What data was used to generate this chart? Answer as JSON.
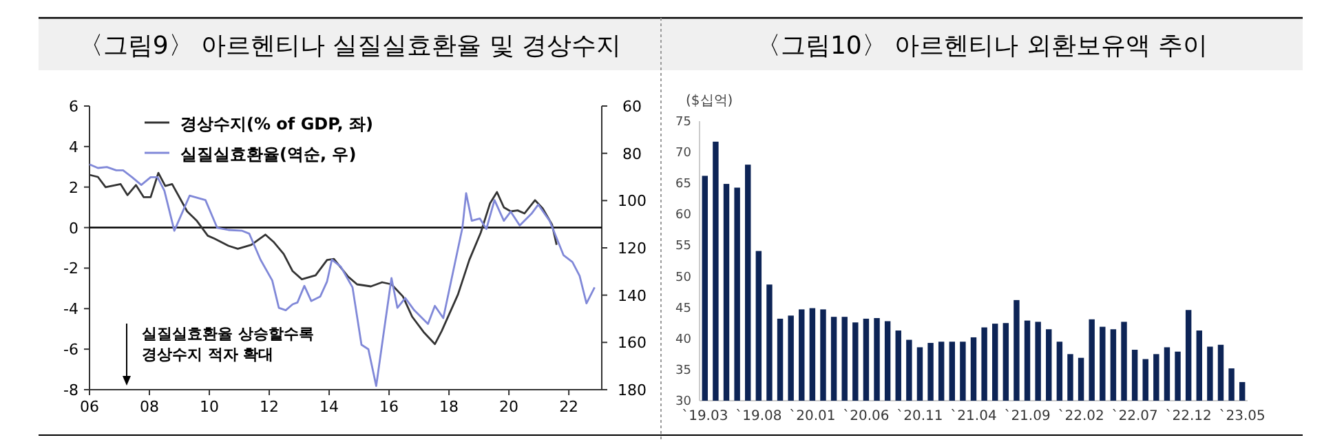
{
  "chart_data": [
    {
      "type": "line",
      "title": "〈그림9〉 아르헨티나 실질실효환율 및 경상수지",
      "xlim": [
        2006,
        2023.1
      ],
      "xticks": [
        {
          "value": 2006,
          "label": "06"
        },
        {
          "value": 2008,
          "label": "08"
        },
        {
          "value": 2010,
          "label": "10"
        },
        {
          "value": 2012,
          "label": "12"
        },
        {
          "value": 2014,
          "label": "14"
        },
        {
          "value": 2016,
          "label": "16"
        },
        {
          "value": 2018,
          "label": "18"
        },
        {
          "value": 2020,
          "label": "20"
        },
        {
          "value": 2022,
          "label": "22"
        }
      ],
      "ylim": [
        -8,
        6
      ],
      "yticks": [
        -8,
        -6,
        -4,
        -2,
        0,
        2,
        4,
        6
      ],
      "y2lim": [
        180,
        60
      ],
      "y2ticks": [
        60,
        80,
        100,
        120,
        140,
        160,
        180
      ],
      "legend": "top left",
      "grid": false,
      "ref_lines": [
        {
          "axis": "y",
          "value": 0,
          "color": "#000000"
        }
      ],
      "annotations": [
        "실질실효환율 상승할수록",
        "경상수지 적자 확대"
      ],
      "series": [
        {
          "name": "경상수지(% of GDP, 좌)",
          "color": "#333333",
          "x": [
            2006.0,
            2006.28,
            2006.54,
            2007.04,
            2007.27,
            2007.55,
            2007.81,
            2008.04,
            2008.3,
            2008.53,
            2008.76,
            2009.26,
            2009.57,
            2009.95,
            2010.18,
            2010.64,
            2010.95,
            2011.4,
            2011.87,
            2012.14,
            2012.48,
            2012.78,
            2013.09,
            2013.55,
            2013.93,
            2014.16,
            2014.62,
            2014.93,
            2015.39,
            2015.77,
            2016.08,
            2016.46,
            2016.77,
            2017.15,
            2017.53,
            2017.76,
            2018.3,
            2018.68,
            2019.06,
            2019.37,
            2019.6,
            2019.83,
            2020.06,
            2020.29,
            2020.52,
            2020.87,
            2021.13,
            2021.44,
            2021.59
          ],
          "values": [
            2.6,
            2.5,
            2.0,
            2.15,
            1.6,
            2.1,
            1.5,
            1.5,
            2.7,
            2.05,
            2.15,
            0.8,
            0.35,
            -0.4,
            -0.55,
            -0.9,
            -1.05,
            -0.85,
            -0.35,
            -0.7,
            -1.3,
            -2.15,
            -2.55,
            -2.35,
            -1.6,
            -1.55,
            -2.4,
            -2.8,
            -2.9,
            -2.7,
            -2.8,
            -3.4,
            -4.4,
            -5.15,
            -5.75,
            -5.1,
            -3.3,
            -1.6,
            -0.25,
            1.2,
            1.75,
            1.0,
            0.8,
            0.85,
            0.7,
            1.35,
            0.95,
            0.15,
            -0.85
          ]
        },
        {
          "name": "실질실효환율(역순, 우)",
          "color": "#8088d8",
          "axis": "y2",
          "x": [
            2006.0,
            2006.28,
            2006.58,
            2006.89,
            2007.12,
            2007.42,
            2007.73,
            2008.04,
            2008.27,
            2008.5,
            2008.83,
            2009.34,
            2009.87,
            2010.26,
            2010.64,
            2011.1,
            2011.33,
            2011.71,
            2012.1,
            2012.32,
            2012.55,
            2012.78,
            2012.94,
            2013.17,
            2013.4,
            2013.7,
            2013.93,
            2014.09,
            2014.39,
            2014.78,
            2015.08,
            2015.31,
            2015.57,
            2015.85,
            2016.08,
            2016.28,
            2016.54,
            2016.84,
            2017.3,
            2017.53,
            2017.81,
            2018.45,
            2018.57,
            2018.76,
            2019.03,
            2019.25,
            2019.52,
            2019.83,
            2020.06,
            2020.36,
            2020.75,
            2020.98,
            2021.36,
            2021.82,
            2022.12,
            2022.36,
            2022.59,
            2022.86
          ],
          "values": [
            84.7,
            86.2,
            85.8,
            87.2,
            87.2,
            90.1,
            93.4,
            90.1,
            90.1,
            95.9,
            112.8,
            97.9,
            99.8,
            111.5,
            112.4,
            112.8,
            114.0,
            125.0,
            133.8,
            145.4,
            146.4,
            143.9,
            143.1,
            136.1,
            142.5,
            140.6,
            134.2,
            125.0,
            128.0,
            136.7,
            161.0,
            162.9,
            178.4,
            153.2,
            132.8,
            145.4,
            141.2,
            146.4,
            152.2,
            144.5,
            149.7,
            111.5,
            96.9,
            108.5,
            107.6,
            112.0,
            99.8,
            108.5,
            104.7,
            110.5,
            105.6,
            101.7,
            108.5,
            123.1,
            126.0,
            131.8,
            143.5,
            136.7
          ]
        }
      ]
    },
    {
      "type": "bar",
      "title": "〈그림10〉 아르헨티나 외환보유액 추이",
      "ylabel": "($십억)",
      "categories": [
        "`19.03",
        null,
        null,
        null,
        null,
        "`19.08",
        null,
        null,
        null,
        null,
        "`20.01",
        null,
        null,
        null,
        null,
        "`20.06",
        null,
        null,
        null,
        null,
        "`20.11",
        null,
        null,
        null,
        null,
        "`21.04",
        null,
        null,
        null,
        null,
        "`21.09",
        null,
        null,
        null,
        null,
        "`22.02",
        null,
        null,
        null,
        null,
        "`22.07",
        null,
        null,
        null,
        null,
        "`22.12",
        null,
        null,
        null,
        null,
        "`23.05"
      ],
      "ylim": [
        30,
        75
      ],
      "yticks": [
        30,
        35,
        40,
        45,
        50,
        55,
        60,
        65,
        70,
        75
      ],
      "grid": false,
      "color": "#0d2456",
      "values": [
        66.2,
        71.7,
        64.9,
        64.3,
        68.0,
        54.1,
        48.7,
        43.2,
        43.7,
        44.7,
        44.9,
        44.7,
        43.5,
        43.5,
        42.6,
        43.2,
        43.3,
        42.8,
        41.3,
        39.8,
        38.6,
        39.3,
        39.5,
        39.5,
        39.5,
        40.2,
        41.8,
        42.4,
        42.5,
        46.2,
        42.9,
        42.7,
        41.5,
        39.5,
        37.5,
        36.9,
        43.1,
        41.9,
        41.5,
        42.7,
        38.2,
        36.7,
        37.5,
        38.6,
        37.9,
        44.6,
        41.3,
        38.7,
        39.0,
        35.2,
        33.0
      ]
    }
  ]
}
